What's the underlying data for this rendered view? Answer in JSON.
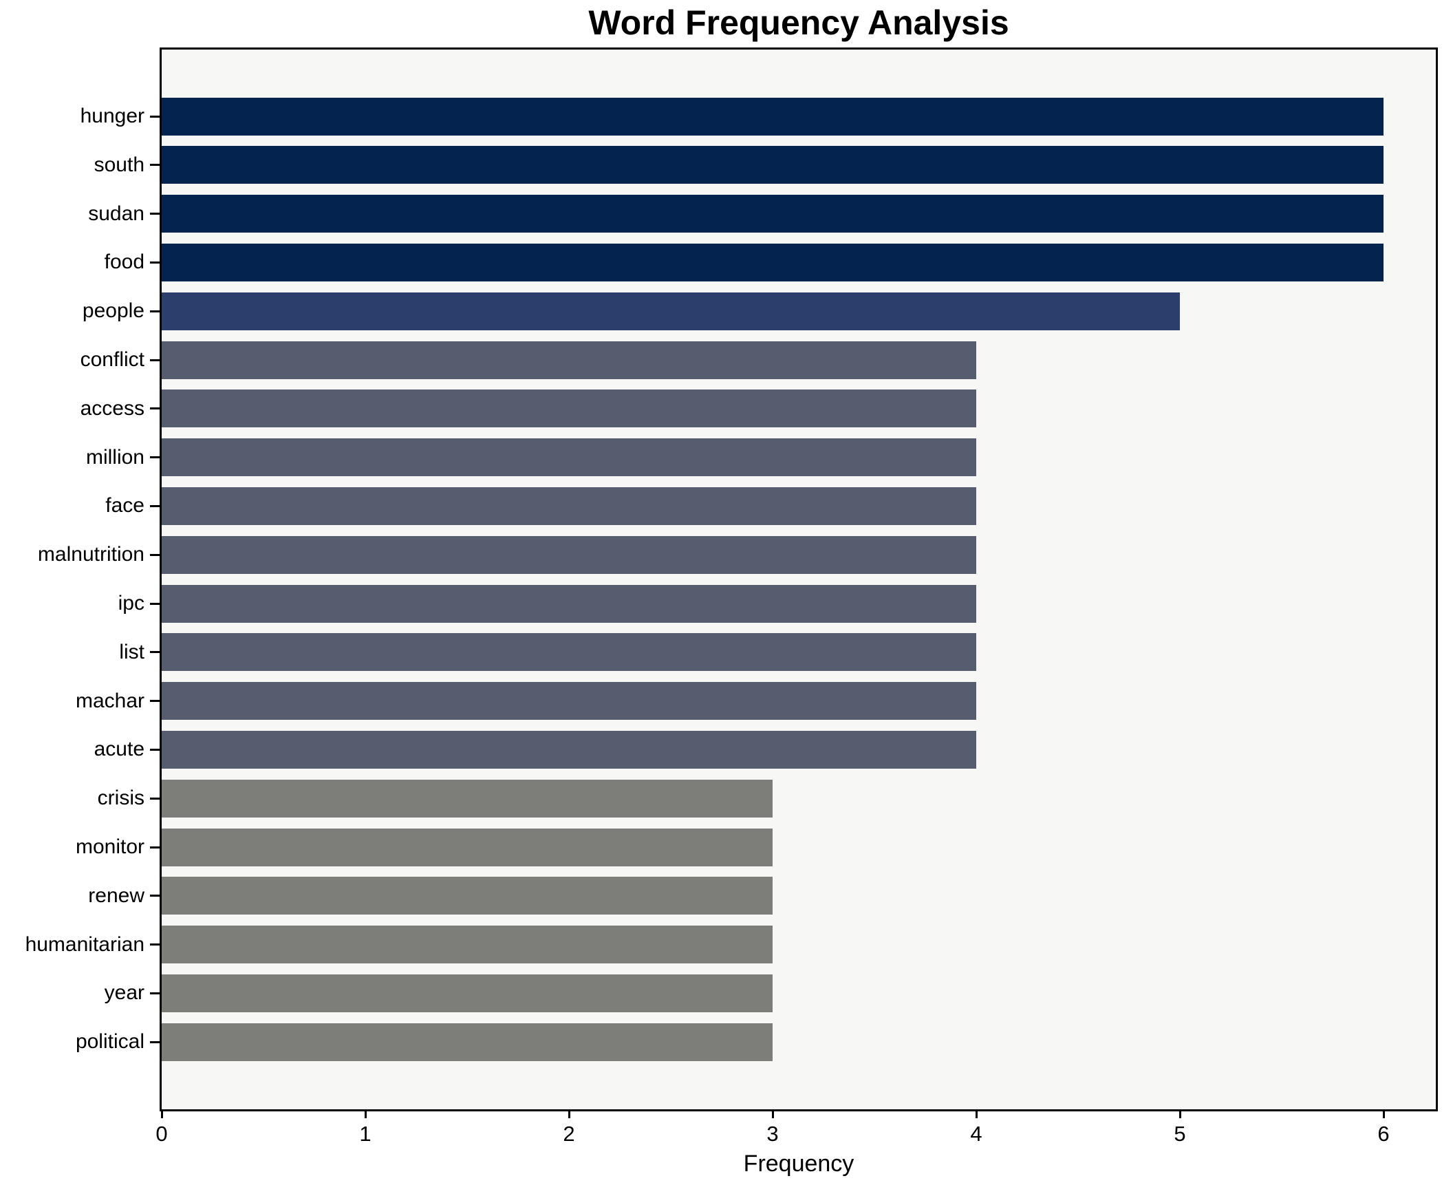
{
  "chart_data": {
    "type": "bar",
    "orientation": "horizontal",
    "title": "Word Frequency Analysis",
    "xlabel": "Frequency",
    "ylabel": "",
    "categories": [
      "hunger",
      "south",
      "sudan",
      "food",
      "people",
      "conflict",
      "access",
      "million",
      "face",
      "malnutrition",
      "ipc",
      "list",
      "machar",
      "acute",
      "crisis",
      "monitor",
      "renew",
      "humanitarian",
      "year",
      "political"
    ],
    "values": [
      6,
      6,
      6,
      6,
      5,
      4,
      4,
      4,
      4,
      4,
      4,
      4,
      4,
      4,
      3,
      3,
      3,
      3,
      3,
      3
    ],
    "xticks": [
      0,
      1,
      2,
      3,
      4,
      5,
      6
    ],
    "xlim": [
      0,
      6.26
    ],
    "grid": false,
    "legend": null,
    "palette_by_value": {
      "6": "#04234e",
      "5": "#2c3f6c",
      "4": "#565d6e",
      "3": "#7d7d79"
    },
    "plot_background": "#f7f7f6",
    "figure_background": "#ffffff",
    "spine_color": "#000000"
  }
}
